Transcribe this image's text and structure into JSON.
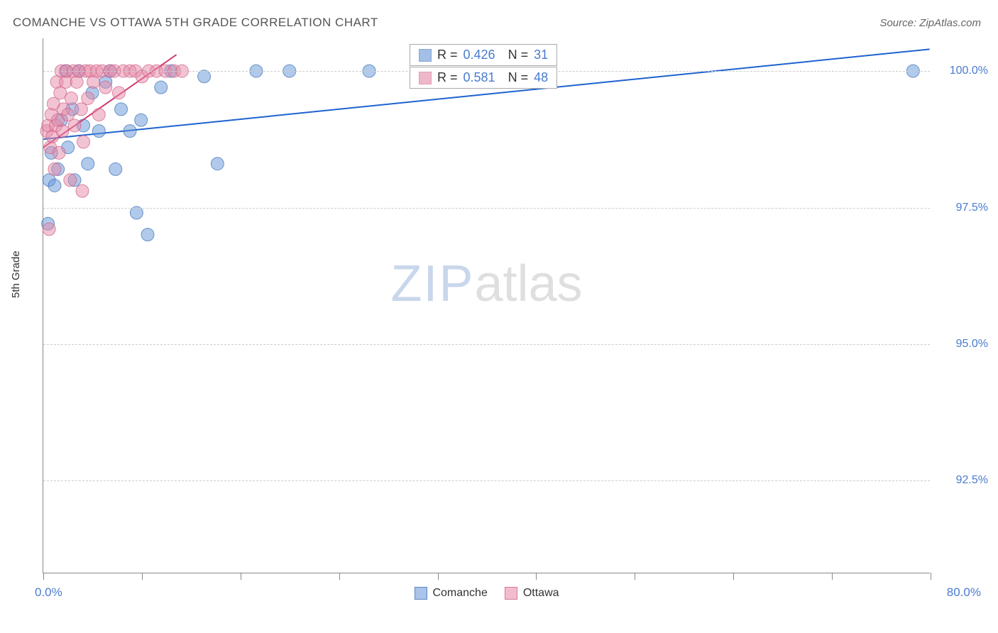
{
  "title": "COMANCHE VS OTTAWA 5TH GRADE CORRELATION CHART",
  "source_label": "Source: ZipAtlas.com",
  "ylabel": "5th Grade",
  "watermark": {
    "part1": "ZIP",
    "part2": "atlas"
  },
  "chart": {
    "type": "scatter",
    "xlim": [
      0,
      80
    ],
    "ylim": [
      90.8,
      100.6
    ],
    "x_tick_left_label": "0.0%",
    "x_tick_right_label": "80.0%",
    "y_ticks": [
      {
        "value": 100.0,
        "label": "100.0%"
      },
      {
        "value": 97.5,
        "label": "97.5%"
      },
      {
        "value": 95.0,
        "label": "95.0%"
      },
      {
        "value": 92.5,
        "label": "92.5%"
      }
    ],
    "x_minor_ticks": [
      0,
      8.9,
      17.8,
      26.7,
      35.6,
      44.4,
      53.3,
      62.2,
      71.1,
      80
    ],
    "grid_color": "#cccccc",
    "background_color": "#ffffff",
    "axis_color": "#888888",
    "marker_radius": 9,
    "marker_opacity": 0.5,
    "series": [
      {
        "name": "Comanche",
        "color": "#6495d8",
        "stroke": "#3b6eb5",
        "r_value": "0.426",
        "n_value": "31",
        "trend": {
          "x1": 0,
          "y1": 98.75,
          "x2": 80,
          "y2": 100.4,
          "color": "#1e62d0",
          "width": 2
        },
        "points": [
          [
            0.4,
            97.2
          ],
          [
            0.5,
            98.0
          ],
          [
            0.7,
            98.5
          ],
          [
            1.0,
            97.9
          ],
          [
            1.3,
            98.2
          ],
          [
            1.6,
            99.1
          ],
          [
            2.0,
            100.0
          ],
          [
            2.2,
            98.6
          ],
          [
            2.6,
            99.3
          ],
          [
            2.8,
            98.0
          ],
          [
            3.2,
            100.0
          ],
          [
            3.6,
            99.0
          ],
          [
            4.0,
            98.3
          ],
          [
            4.4,
            99.6
          ],
          [
            5.0,
            98.9
          ],
          [
            5.6,
            99.8
          ],
          [
            6.0,
            100.0
          ],
          [
            6.5,
            98.2
          ],
          [
            7.0,
            99.3
          ],
          [
            7.8,
            98.9
          ],
          [
            8.4,
            97.4
          ],
          [
            8.8,
            99.1
          ],
          [
            9.4,
            97.0
          ],
          [
            10.6,
            99.7
          ],
          [
            11.5,
            100.0
          ],
          [
            14.5,
            99.9
          ],
          [
            15.7,
            98.3
          ],
          [
            19.2,
            100.0
          ],
          [
            22.2,
            100.0
          ],
          [
            29.4,
            100.0
          ],
          [
            78.5,
            100.0
          ]
        ]
      },
      {
        "name": "Ottawa",
        "color": "#e68aa8",
        "stroke": "#d05c85",
        "r_value": "0.581",
        "n_value": "48",
        "trend": {
          "x1": 0,
          "y1": 98.6,
          "x2": 12,
          "y2": 100.3,
          "color": "#d23b6e",
          "width": 2
        },
        "points": [
          [
            0.3,
            98.9
          ],
          [
            0.4,
            99.0
          ],
          [
            0.5,
            97.1
          ],
          [
            0.6,
            98.6
          ],
          [
            0.7,
            99.2
          ],
          [
            0.8,
            98.8
          ],
          [
            0.9,
            99.4
          ],
          [
            1.0,
            98.2
          ],
          [
            1.1,
            99.0
          ],
          [
            1.2,
            99.8
          ],
          [
            1.3,
            99.1
          ],
          [
            1.4,
            98.5
          ],
          [
            1.5,
            99.6
          ],
          [
            1.6,
            100.0
          ],
          [
            1.7,
            98.9
          ],
          [
            1.8,
            99.3
          ],
          [
            2.0,
            99.8
          ],
          [
            2.1,
            100.0
          ],
          [
            2.2,
            99.2
          ],
          [
            2.4,
            98.0
          ],
          [
            2.5,
            99.5
          ],
          [
            2.7,
            100.0
          ],
          [
            2.8,
            99.0
          ],
          [
            3.0,
            99.8
          ],
          [
            3.2,
            100.0
          ],
          [
            3.4,
            99.3
          ],
          [
            3.6,
            98.7
          ],
          [
            3.8,
            100.0
          ],
          [
            4.0,
            99.5
          ],
          [
            4.2,
            100.0
          ],
          [
            4.5,
            99.8
          ],
          [
            4.8,
            100.0
          ],
          [
            5.0,
            99.2
          ],
          [
            5.3,
            100.0
          ],
          [
            5.6,
            99.7
          ],
          [
            6.0,
            100.0
          ],
          [
            6.4,
            100.0
          ],
          [
            6.8,
            99.6
          ],
          [
            7.2,
            100.0
          ],
          [
            7.8,
            100.0
          ],
          [
            8.3,
            100.0
          ],
          [
            8.9,
            99.9
          ],
          [
            9.5,
            100.0
          ],
          [
            10.2,
            100.0
          ],
          [
            11.0,
            100.0
          ],
          [
            11.8,
            100.0
          ],
          [
            12.5,
            100.0
          ],
          [
            3.5,
            97.8
          ]
        ]
      }
    ],
    "legend": [
      {
        "name": "Comanche",
        "fill": "#a9c3ea",
        "stroke": "#5a86c7"
      },
      {
        "name": "Ottawa",
        "fill": "#f2bccf",
        "stroke": "#d47a9e"
      }
    ]
  }
}
